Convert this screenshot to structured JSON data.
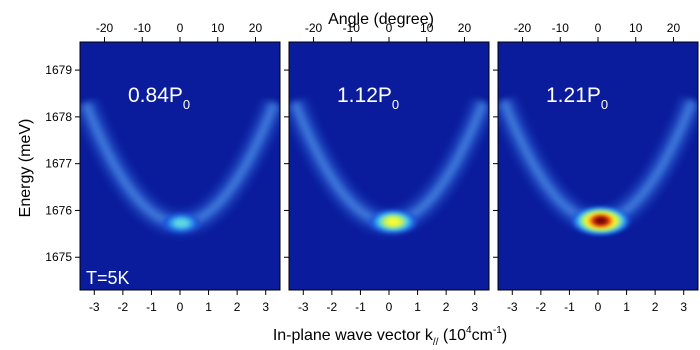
{
  "chart_data": {
    "type": "heatmap",
    "top_axis_label": "Angle (degree)",
    "xlabel_main": "In-plane wave vector k",
    "xlabel_sub": "//",
    "xlabel_unit_open": " (10",
    "xlabel_unit_exp1": "4",
    "xlabel_unit_mid": "cm",
    "xlabel_unit_exp2": "-1",
    "xlabel_unit_close": ")",
    "ylabel": "Energy (meV)",
    "xlim": [
      -3.5,
      3.5
    ],
    "ylim": [
      1674.3,
      1679.6
    ],
    "anglelim": [
      -26.5,
      26.5
    ],
    "x_ticks": [
      -3,
      -2,
      -1,
      0,
      1,
      2,
      3
    ],
    "y_ticks": [
      1675,
      1676,
      1677,
      1678,
      1679
    ],
    "angle_ticks": [
      -20,
      -10,
      0,
      10,
      20
    ],
    "annotation": "T=5K",
    "colors": {
      "background": "#0a1c9c",
      "ramp": [
        "#0a1c9c",
        "#1e4fd8",
        "#2fa0f0",
        "#66e0e0",
        "#c8f050",
        "#ffff30",
        "#ff9a10",
        "#d81a10",
        "#5a0000"
      ]
    },
    "panels": [
      {
        "power_prefix": "0.84P",
        "power_sub": "0",
        "dispersion": {
          "vertex_energy": 1675.73,
          "curvature": 0.235
        },
        "peak": {
          "k": 0.05,
          "energy": 1675.75,
          "intensity_level": 0.38
        }
      },
      {
        "power_prefix": "1.12P",
        "power_sub": "0",
        "dispersion": {
          "vertex_energy": 1675.75,
          "curvature": 0.235
        },
        "peak": {
          "k": 0.15,
          "energy": 1675.78,
          "intensity_level": 0.68
        }
      },
      {
        "power_prefix": "1.21P",
        "power_sub": "0",
        "dispersion": {
          "vertex_energy": 1675.78,
          "curvature": 0.235
        },
        "peak": {
          "k": 0.1,
          "energy": 1675.8,
          "intensity_level": 1.0
        }
      }
    ]
  }
}
